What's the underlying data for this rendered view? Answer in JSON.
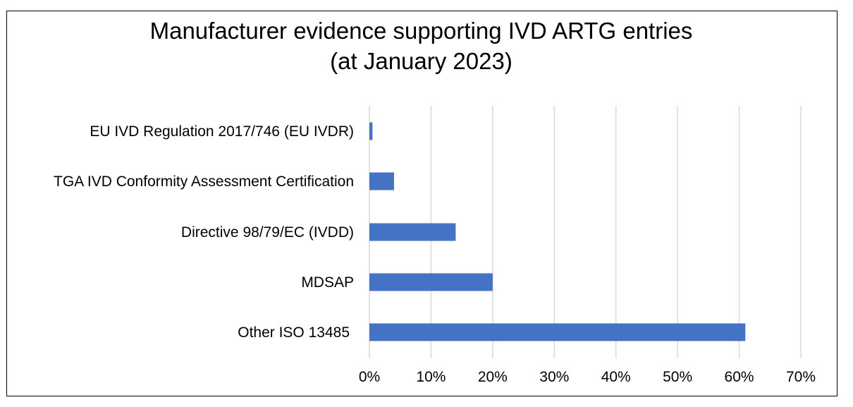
{
  "chart_data": {
    "type": "bar",
    "orientation": "horizontal",
    "title": "Manufacturer evidence supporting IVD ARTG entries",
    "subtitle": "(at January 2023)",
    "categories": [
      "EU IVD Regulation 2017/746 (EU IVDR)",
      "TGA IVD Conformity Assessment Certification",
      "Directive 98/79/EC (IVDD)",
      "MDSAP",
      "Other ISO 13485"
    ],
    "values": [
      0.5,
      4,
      14,
      20,
      61
    ],
    "xlim": [
      0,
      70
    ],
    "xticks": [
      0,
      10,
      20,
      30,
      40,
      50,
      60,
      70
    ],
    "tick_suffix": "%",
    "grid": true,
    "legend": "none",
    "colors": {
      "bar": "#4472C4",
      "grid": "#d9d9d9",
      "frame": "#000000"
    }
  }
}
